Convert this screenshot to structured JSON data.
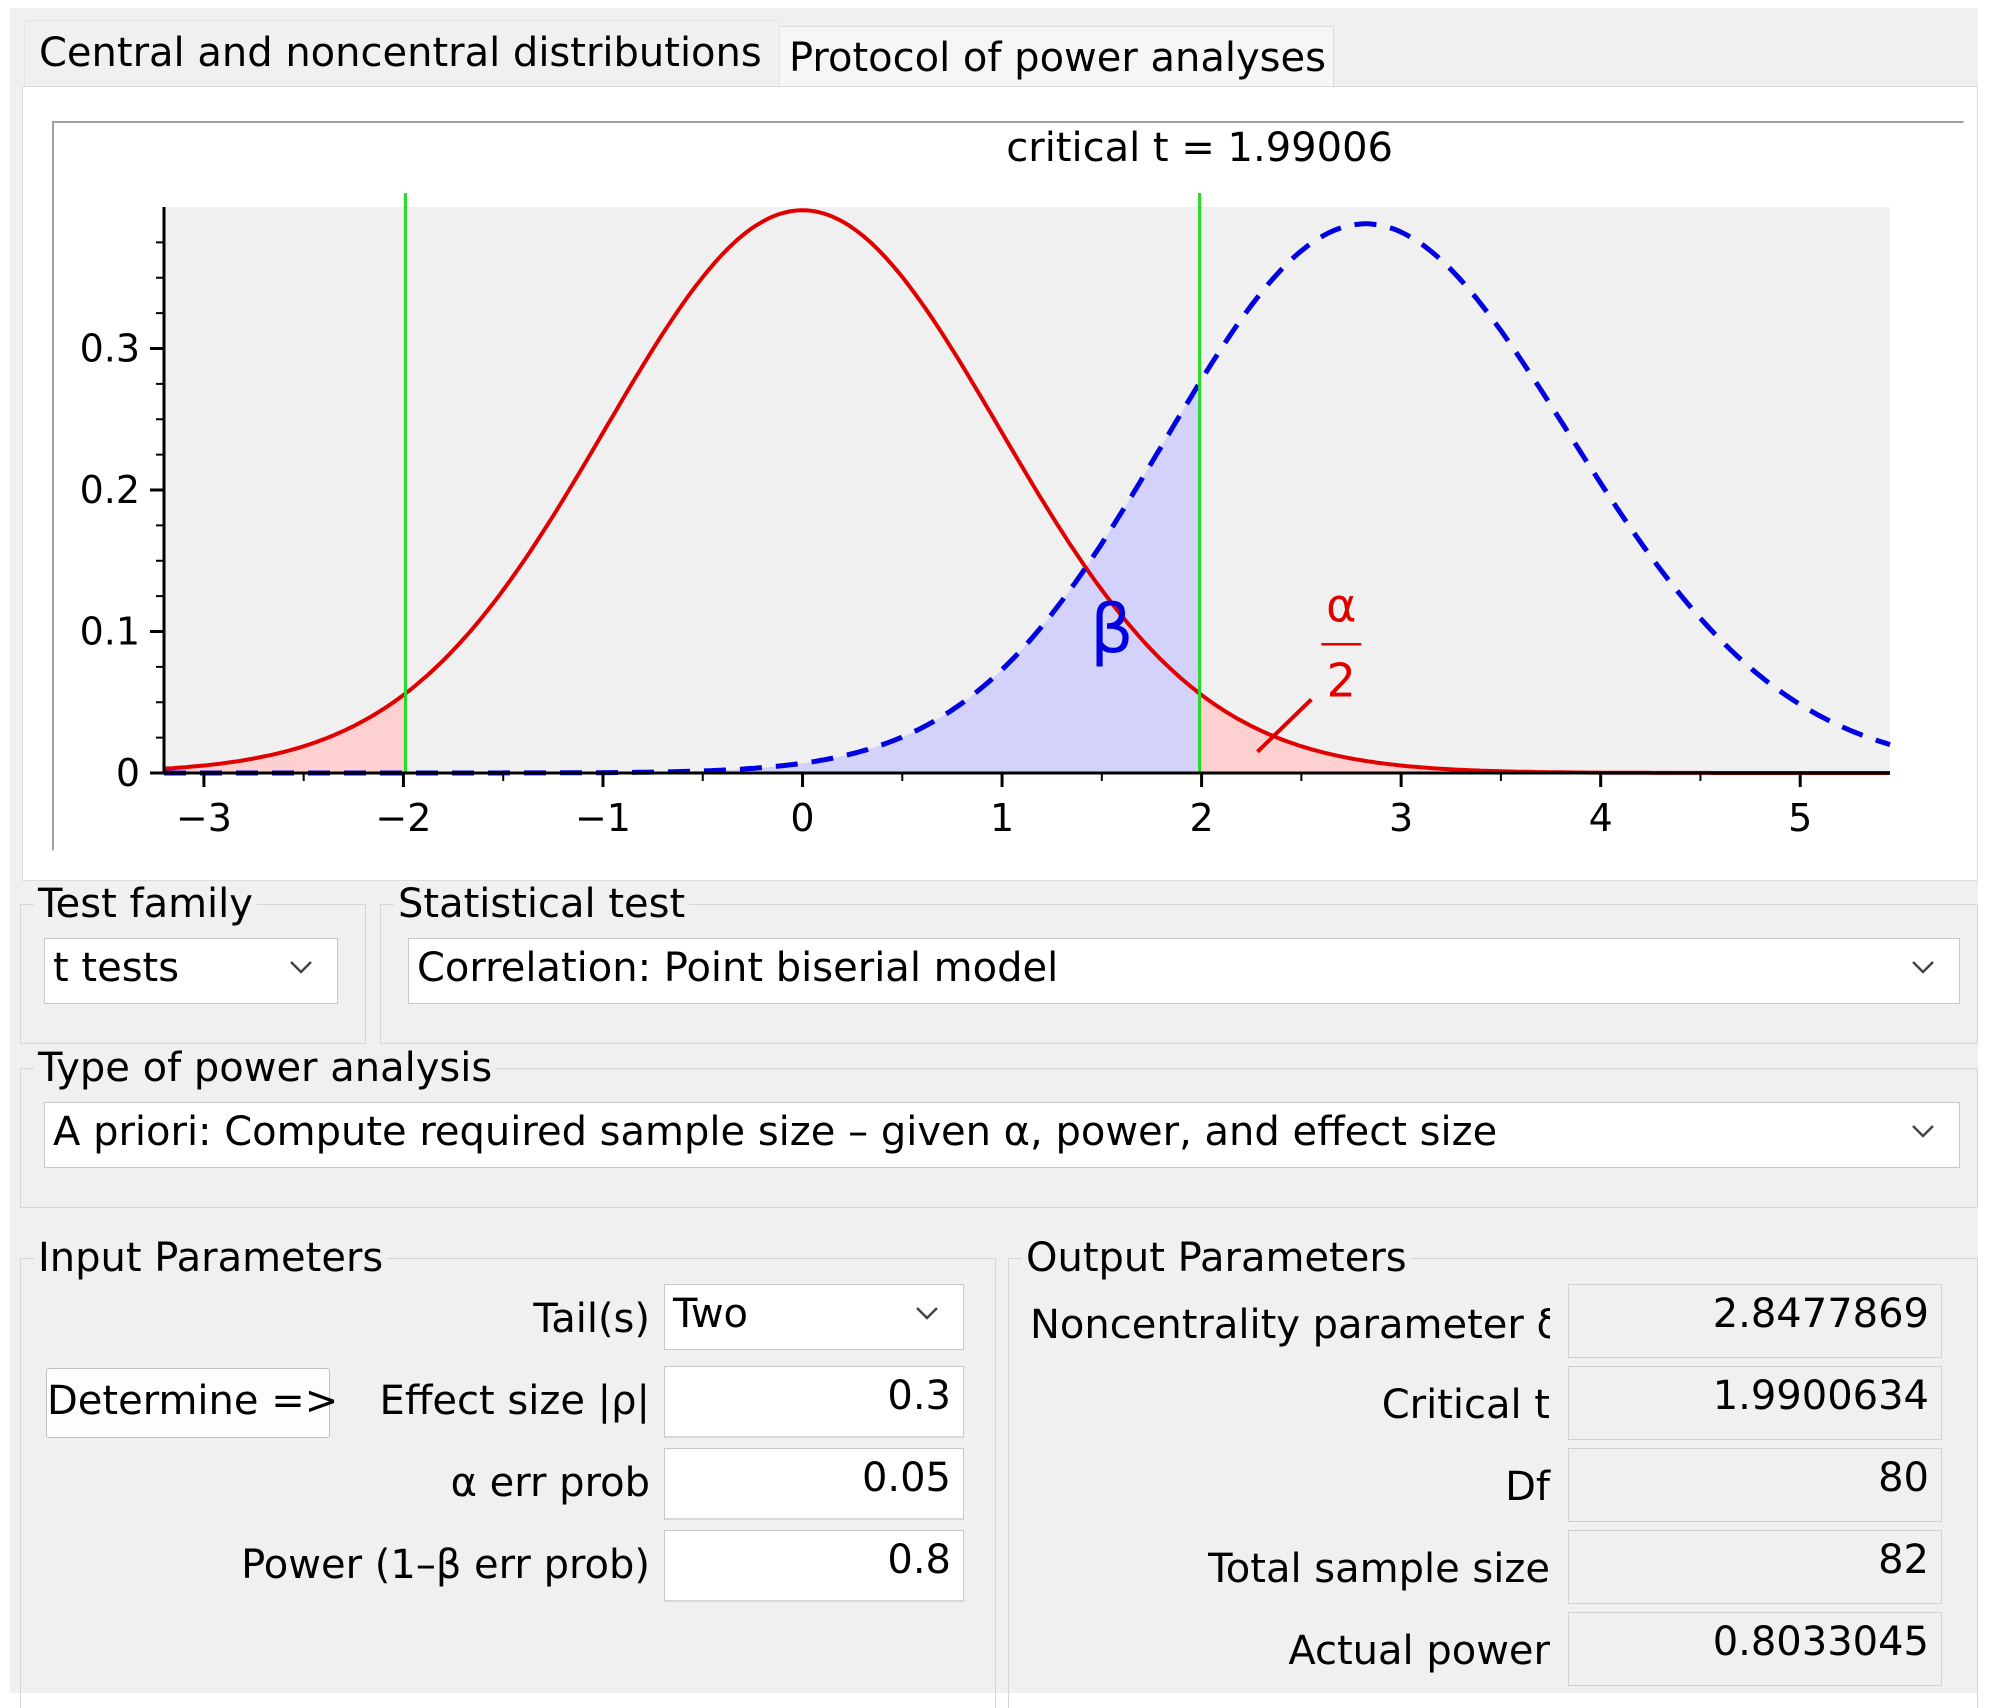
{
  "tabs": {
    "distributions": "Central and noncentral distributions",
    "protocol": "Protocol of power analyses"
  },
  "chart_data": {
    "type": "line",
    "title": "critical t = 1.99006",
    "xlim": [
      -3.2,
      5.45
    ],
    "ylim": [
      0,
      0.4
    ],
    "x_ticks": [
      "−3",
      "−2",
      "−1",
      "0",
      "1",
      "2",
      "3",
      "4",
      "5"
    ],
    "y_ticks": [
      "0",
      "0.1",
      "0.2",
      "0.3"
    ],
    "critical_values": [
      -1.99006,
      1.99006
    ],
    "series": [
      {
        "kind": "central t",
        "df": 80,
        "noncentrality": 0,
        "color": "#e00000",
        "style": "solid"
      },
      {
        "kind": "noncentral t",
        "df": 80,
        "noncentrality": 2.8477869,
        "color": "#0000e0",
        "style": "dashed"
      }
    ],
    "annotations": {
      "beta": "β",
      "alpha_num": "α",
      "alpha_den": "2"
    },
    "colors": {
      "critical_line": "#22dd22",
      "alpha_fill": "#ffd0d0",
      "beta_fill": "#d2d2fb"
    }
  },
  "test_family": {
    "label": "Test family",
    "value": "t tests"
  },
  "statistical_test": {
    "label": "Statistical test",
    "value": "Correlation: Point biserial model"
  },
  "power_analysis": {
    "label": "Type of power analysis",
    "value": "A priori: Compute required sample size – given α, power, and effect size"
  },
  "input": {
    "label": "Input Parameters",
    "determine": "Determine =>",
    "tails_label": "Tail(s)",
    "tails_value": "Two",
    "effect_label": "Effect size |ρ|",
    "effect_value": "0.3",
    "alpha_label": "α err prob",
    "alpha_value": "0.05",
    "power_label": "Power (1–β err prob)",
    "power_value": "0.8"
  },
  "output": {
    "label": "Output Parameters",
    "ncp_label": "Noncentrality parameter δ",
    "ncp_value": "2.8477869",
    "crit_label": "Critical t",
    "crit_value": "1.9900634",
    "df_label": "Df",
    "df_value": "80",
    "n_label": "Total sample size",
    "n_value": "82",
    "power_label": "Actual power",
    "power_value": "0.8033045"
  }
}
